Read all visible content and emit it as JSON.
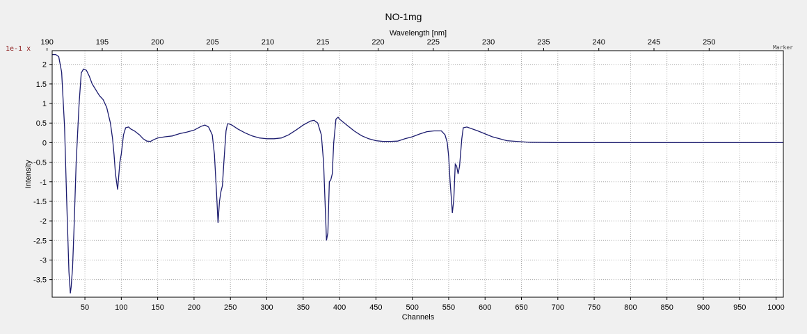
{
  "colors": {
    "background": "#f0f0f0",
    "plot_bg": "#ffffff",
    "grid": "#a8a8a8",
    "line": "#1b1b6e",
    "scale_text": "#8b1a1a"
  },
  "scale_label": "1e-1 x",
  "marker_label": "Marker",
  "chart_data": {
    "type": "line",
    "title": "NO-1mg",
    "xlabel": "Channels",
    "ylabel": "Intensity",
    "x2label": "Wavelength [nm]",
    "xlim": [
      5,
      1010
    ],
    "ylim": [
      -3.95,
      2.35
    ],
    "x_ticks": [
      50,
      100,
      150,
      200,
      250,
      300,
      350,
      400,
      450,
      500,
      550,
      600,
      650,
      700,
      750,
      800,
      850,
      900,
      950,
      1000
    ],
    "y_ticks": [
      2,
      1.5,
      1,
      0.5,
      0,
      -0.5,
      -1,
      -1.5,
      -2,
      -2.5,
      -3,
      -3.5
    ],
    "x_tick_labels": [
      "50",
      "100",
      "150",
      "200",
      "250",
      "300",
      "350",
      "400",
      "450",
      "500",
      "550",
      "600",
      "650",
      "700",
      "750",
      "800",
      "850",
      "900",
      "950",
      "1000"
    ],
    "y_tick_labels": [
      "2",
      "1.5",
      "1",
      "0.5",
      "0",
      "-0.5",
      "-1",
      "-1.5",
      "-2",
      "-2.5",
      "-3",
      "-3.5"
    ],
    "x2_ticks": [
      190,
      195,
      200,
      205,
      210,
      215,
      220,
      225,
      230,
      235,
      240,
      245,
      250
    ],
    "x2_tick_labels": [
      "190",
      "195",
      "200",
      "205",
      "210",
      "215",
      "220",
      "225",
      "230",
      "235",
      "240",
      "245",
      "250"
    ],
    "x2_channel_map": {
      "wavelength": [
        190,
        250
      ],
      "channel": [
        -2,
        908
      ]
    },
    "grid": true,
    "series": [
      {
        "x": [
          5,
          10,
          14,
          18,
          22,
          25,
          28,
          30,
          31,
          33,
          35,
          38,
          42,
          45,
          48,
          52,
          56,
          60,
          65,
          70,
          75,
          80,
          85,
          88,
          90,
          92,
          95,
          98,
          100,
          103,
          106,
          110,
          113,
          118,
          125,
          130,
          135,
          140,
          145,
          150,
          160,
          170,
          180,
          190,
          200,
          210,
          215,
          220,
          225,
          228,
          231,
          233,
          235,
          237,
          239,
          241,
          244,
          246,
          248,
          252,
          260,
          270,
          280,
          290,
          300,
          310,
          320,
          330,
          340,
          350,
          360,
          365,
          370,
          375,
          378,
          380,
          382,
          384,
          386,
          388,
          390,
          392,
          395,
          398,
          400,
          410,
          420,
          430,
          440,
          450,
          460,
          470,
          480,
          490,
          500,
          510,
          520,
          530,
          540,
          545,
          548,
          550,
          552,
          554,
          555,
          557,
          559,
          561,
          563,
          565,
          568,
          570,
          575,
          590,
          610,
          630,
          660,
          700,
          750,
          800,
          850,
          900,
          950,
          1000,
          1010
        ],
        "y": [
          2.25,
          2.25,
          2.2,
          1.8,
          0.4,
          -1.5,
          -3.3,
          -3.85,
          -3.7,
          -3.2,
          -2.2,
          -0.5,
          1.0,
          1.78,
          1.88,
          1.85,
          1.7,
          1.5,
          1.35,
          1.2,
          1.1,
          0.9,
          0.5,
          0.1,
          -0.3,
          -0.8,
          -1.2,
          -0.5,
          -0.3,
          0.2,
          0.38,
          0.4,
          0.35,
          0.3,
          0.2,
          0.1,
          0.04,
          0.03,
          0.08,
          0.12,
          0.15,
          0.17,
          0.23,
          0.27,
          0.32,
          0.42,
          0.45,
          0.4,
          0.2,
          -0.3,
          -1.3,
          -2.05,
          -1.5,
          -1.25,
          -1.1,
          -0.5,
          0.3,
          0.48,
          0.48,
          0.45,
          0.35,
          0.25,
          0.17,
          0.12,
          0.1,
          0.1,
          0.12,
          0.2,
          0.32,
          0.45,
          0.55,
          0.57,
          0.5,
          0.2,
          -0.5,
          -1.5,
          -2.5,
          -2.3,
          -1.0,
          -0.95,
          -0.8,
          0.0,
          0.6,
          0.65,
          0.6,
          0.45,
          0.3,
          0.18,
          0.1,
          0.05,
          0.03,
          0.03,
          0.04,
          0.1,
          0.15,
          0.22,
          0.28,
          0.3,
          0.3,
          0.2,
          0.0,
          -0.35,
          -1.0,
          -1.5,
          -1.8,
          -1.45,
          -0.55,
          -0.6,
          -0.8,
          -0.6,
          0.1,
          0.38,
          0.4,
          0.3,
          0.15,
          0.05,
          0.01,
          0.0,
          0.0,
          0.0,
          0.0,
          0.0,
          0.0,
          0.0,
          0.0
        ]
      }
    ]
  }
}
